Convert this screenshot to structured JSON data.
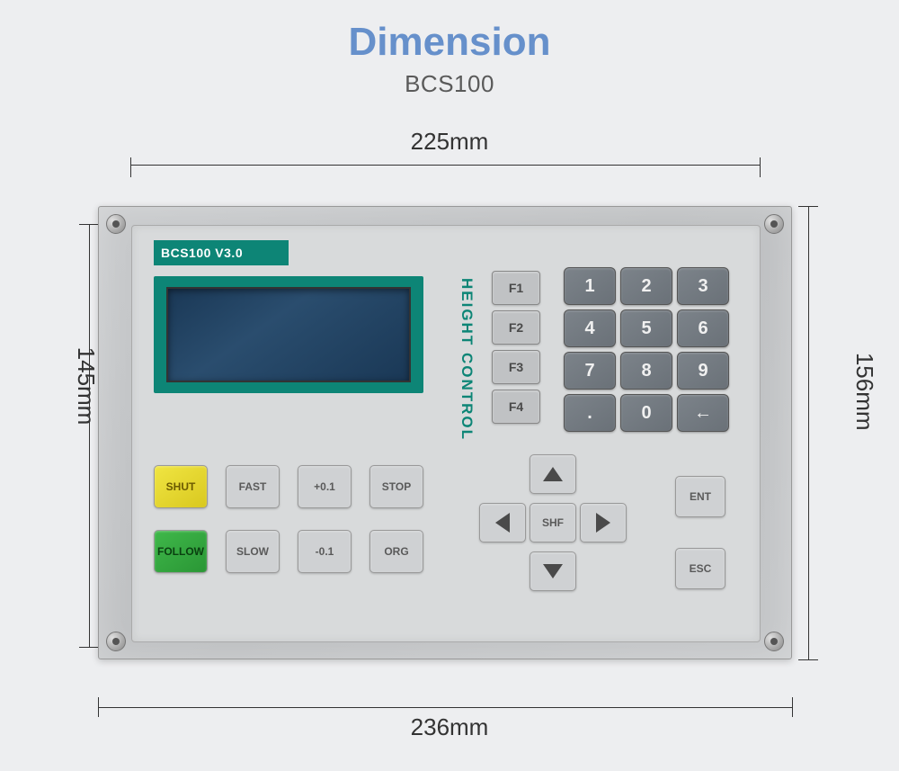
{
  "header": {
    "title": "Dimension",
    "model": "BCS100",
    "title_color": "#6690cb",
    "subtitle_color": "#5a5a5a"
  },
  "dimensions": {
    "width_inner": "225mm",
    "width_outer": "236mm",
    "height_inner": "145mm",
    "height_outer": "156mm"
  },
  "device": {
    "brand_label": "BCS100  V3.0",
    "vertical_label": "HEIGHT  CONTROL",
    "bezel_color": "#c8cacc",
    "panel_color": "#d8dadb",
    "brand_bg": "#0d8576",
    "lcd_bg": "#1a3856"
  },
  "fkeys": [
    "F1",
    "F2",
    "F3",
    "F4"
  ],
  "numpad": {
    "keys": [
      "1",
      "2",
      "3",
      "4",
      "5",
      "6",
      "7",
      "8",
      "9",
      ".",
      "0",
      "←"
    ],
    "key_bg": "#7c838a",
    "key_fg": "#f0f0f0"
  },
  "controls": {
    "row1": [
      {
        "label": "SHUT",
        "style": "yellow"
      },
      {
        "label": "FAST",
        "style": "gray"
      },
      {
        "label": "+0.1",
        "style": "gray"
      },
      {
        "label": "STOP",
        "style": "gray"
      }
    ],
    "row2": [
      {
        "label": "FOLLOW",
        "style": "green"
      },
      {
        "label": "SLOW",
        "style": "gray"
      },
      {
        "label": "-0.1",
        "style": "gray"
      },
      {
        "label": "ORG",
        "style": "gray"
      }
    ],
    "yellow": "#f0e542",
    "green": "#3fb84a",
    "gray": "#cfd1d3"
  },
  "dpad": {
    "center": "SHF"
  },
  "side": {
    "ent": "ENT",
    "esc": "ESC"
  }
}
